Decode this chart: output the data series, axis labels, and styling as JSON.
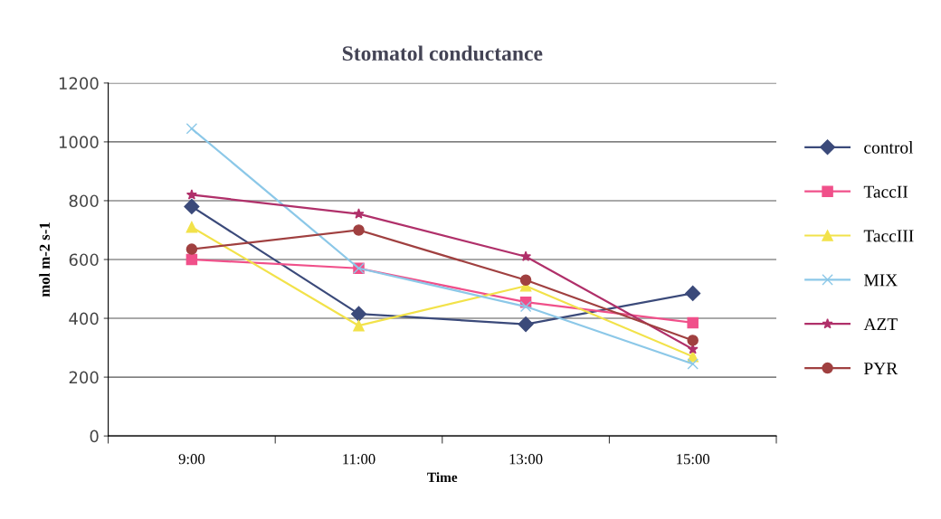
{
  "chart_data": {
    "type": "line",
    "title": "Stomatol conductance",
    "xlabel": "Time",
    "ylabel": "mol m-2 s-1",
    "categories": [
      "9:00",
      "11:00",
      "13:00",
      "15:00"
    ],
    "ylim": [
      0,
      1200
    ],
    "yticks": [
      0,
      200,
      400,
      600,
      800,
      1000,
      1200
    ],
    "grid": "y",
    "legend": "right",
    "series": [
      {
        "name": "control",
        "color": "#3b4a7a",
        "marker": "diamond",
        "values": [
          780,
          415,
          380,
          485
        ]
      },
      {
        "name": "TaccII",
        "color": "#f0508a",
        "marker": "square",
        "values": [
          600,
          570,
          455,
          385
        ]
      },
      {
        "name": "TaccIII",
        "color": "#f2e24a",
        "marker": "triangle",
        "values": [
          710,
          375,
          510,
          270
        ]
      },
      {
        "name": "MIX",
        "color": "#8cc8e8",
        "marker": "cross",
        "values": [
          1045,
          570,
          440,
          245
        ]
      },
      {
        "name": "AZT",
        "color": "#b0306a",
        "marker": "star",
        "values": [
          820,
          755,
          610,
          295
        ]
      },
      {
        "name": "PYR",
        "color": "#a04040",
        "marker": "circle",
        "values": [
          635,
          700,
          530,
          325
        ]
      }
    ]
  }
}
